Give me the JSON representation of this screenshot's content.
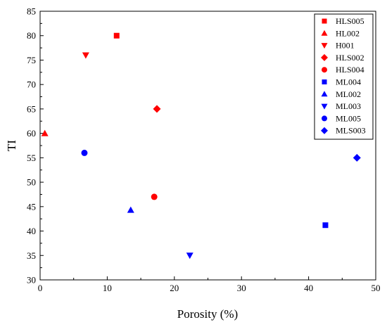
{
  "chart_data": {
    "type": "scatter",
    "xlabel": "Porosity (%)",
    "ylabel": "TI",
    "xlim": [
      0,
      50
    ],
    "ylim": [
      30,
      85
    ],
    "x_ticks": [
      0,
      10,
      20,
      30,
      40,
      50
    ],
    "y_ticks": [
      30,
      35,
      40,
      45,
      50,
      55,
      60,
      65,
      70,
      75,
      80,
      85
    ],
    "grid": false,
    "legend_position": "top-right",
    "series": [
      {
        "name": "HLS005",
        "marker": "square",
        "color": "#ff0000",
        "x": [
          11.4
        ],
        "y": [
          80
        ]
      },
      {
        "name": "HL002",
        "marker": "triangle-up",
        "color": "#ff0000",
        "x": [
          0.7
        ],
        "y": [
          60
        ]
      },
      {
        "name": "H001",
        "marker": "triangle-down",
        "color": "#ff0000",
        "x": [
          6.8
        ],
        "y": [
          76
        ]
      },
      {
        "name": "HLS002",
        "marker": "diamond",
        "color": "#ff0000",
        "x": [
          17.4
        ],
        "y": [
          65
        ]
      },
      {
        "name": "HLS004",
        "marker": "circle",
        "color": "#ff0000",
        "x": [
          17.0
        ],
        "y": [
          47
        ]
      },
      {
        "name": "ML004",
        "marker": "square",
        "color": "#0000ff",
        "x": [
          42.5
        ],
        "y": [
          41.2
        ]
      },
      {
        "name": "ML002",
        "marker": "triangle-up",
        "color": "#0000ff",
        "x": [
          13.5
        ],
        "y": [
          44.3
        ]
      },
      {
        "name": "ML003",
        "marker": "triangle-down",
        "color": "#0000ff",
        "x": [
          22.3
        ],
        "y": [
          35
        ]
      },
      {
        "name": "ML005",
        "marker": "circle",
        "color": "#0000ff",
        "x": [
          6.6
        ],
        "y": [
          56
        ]
      },
      {
        "name": "MLS003",
        "marker": "diamond",
        "color": "#0000ff",
        "x": [
          47.2
        ],
        "y": [
          55
        ]
      }
    ]
  }
}
